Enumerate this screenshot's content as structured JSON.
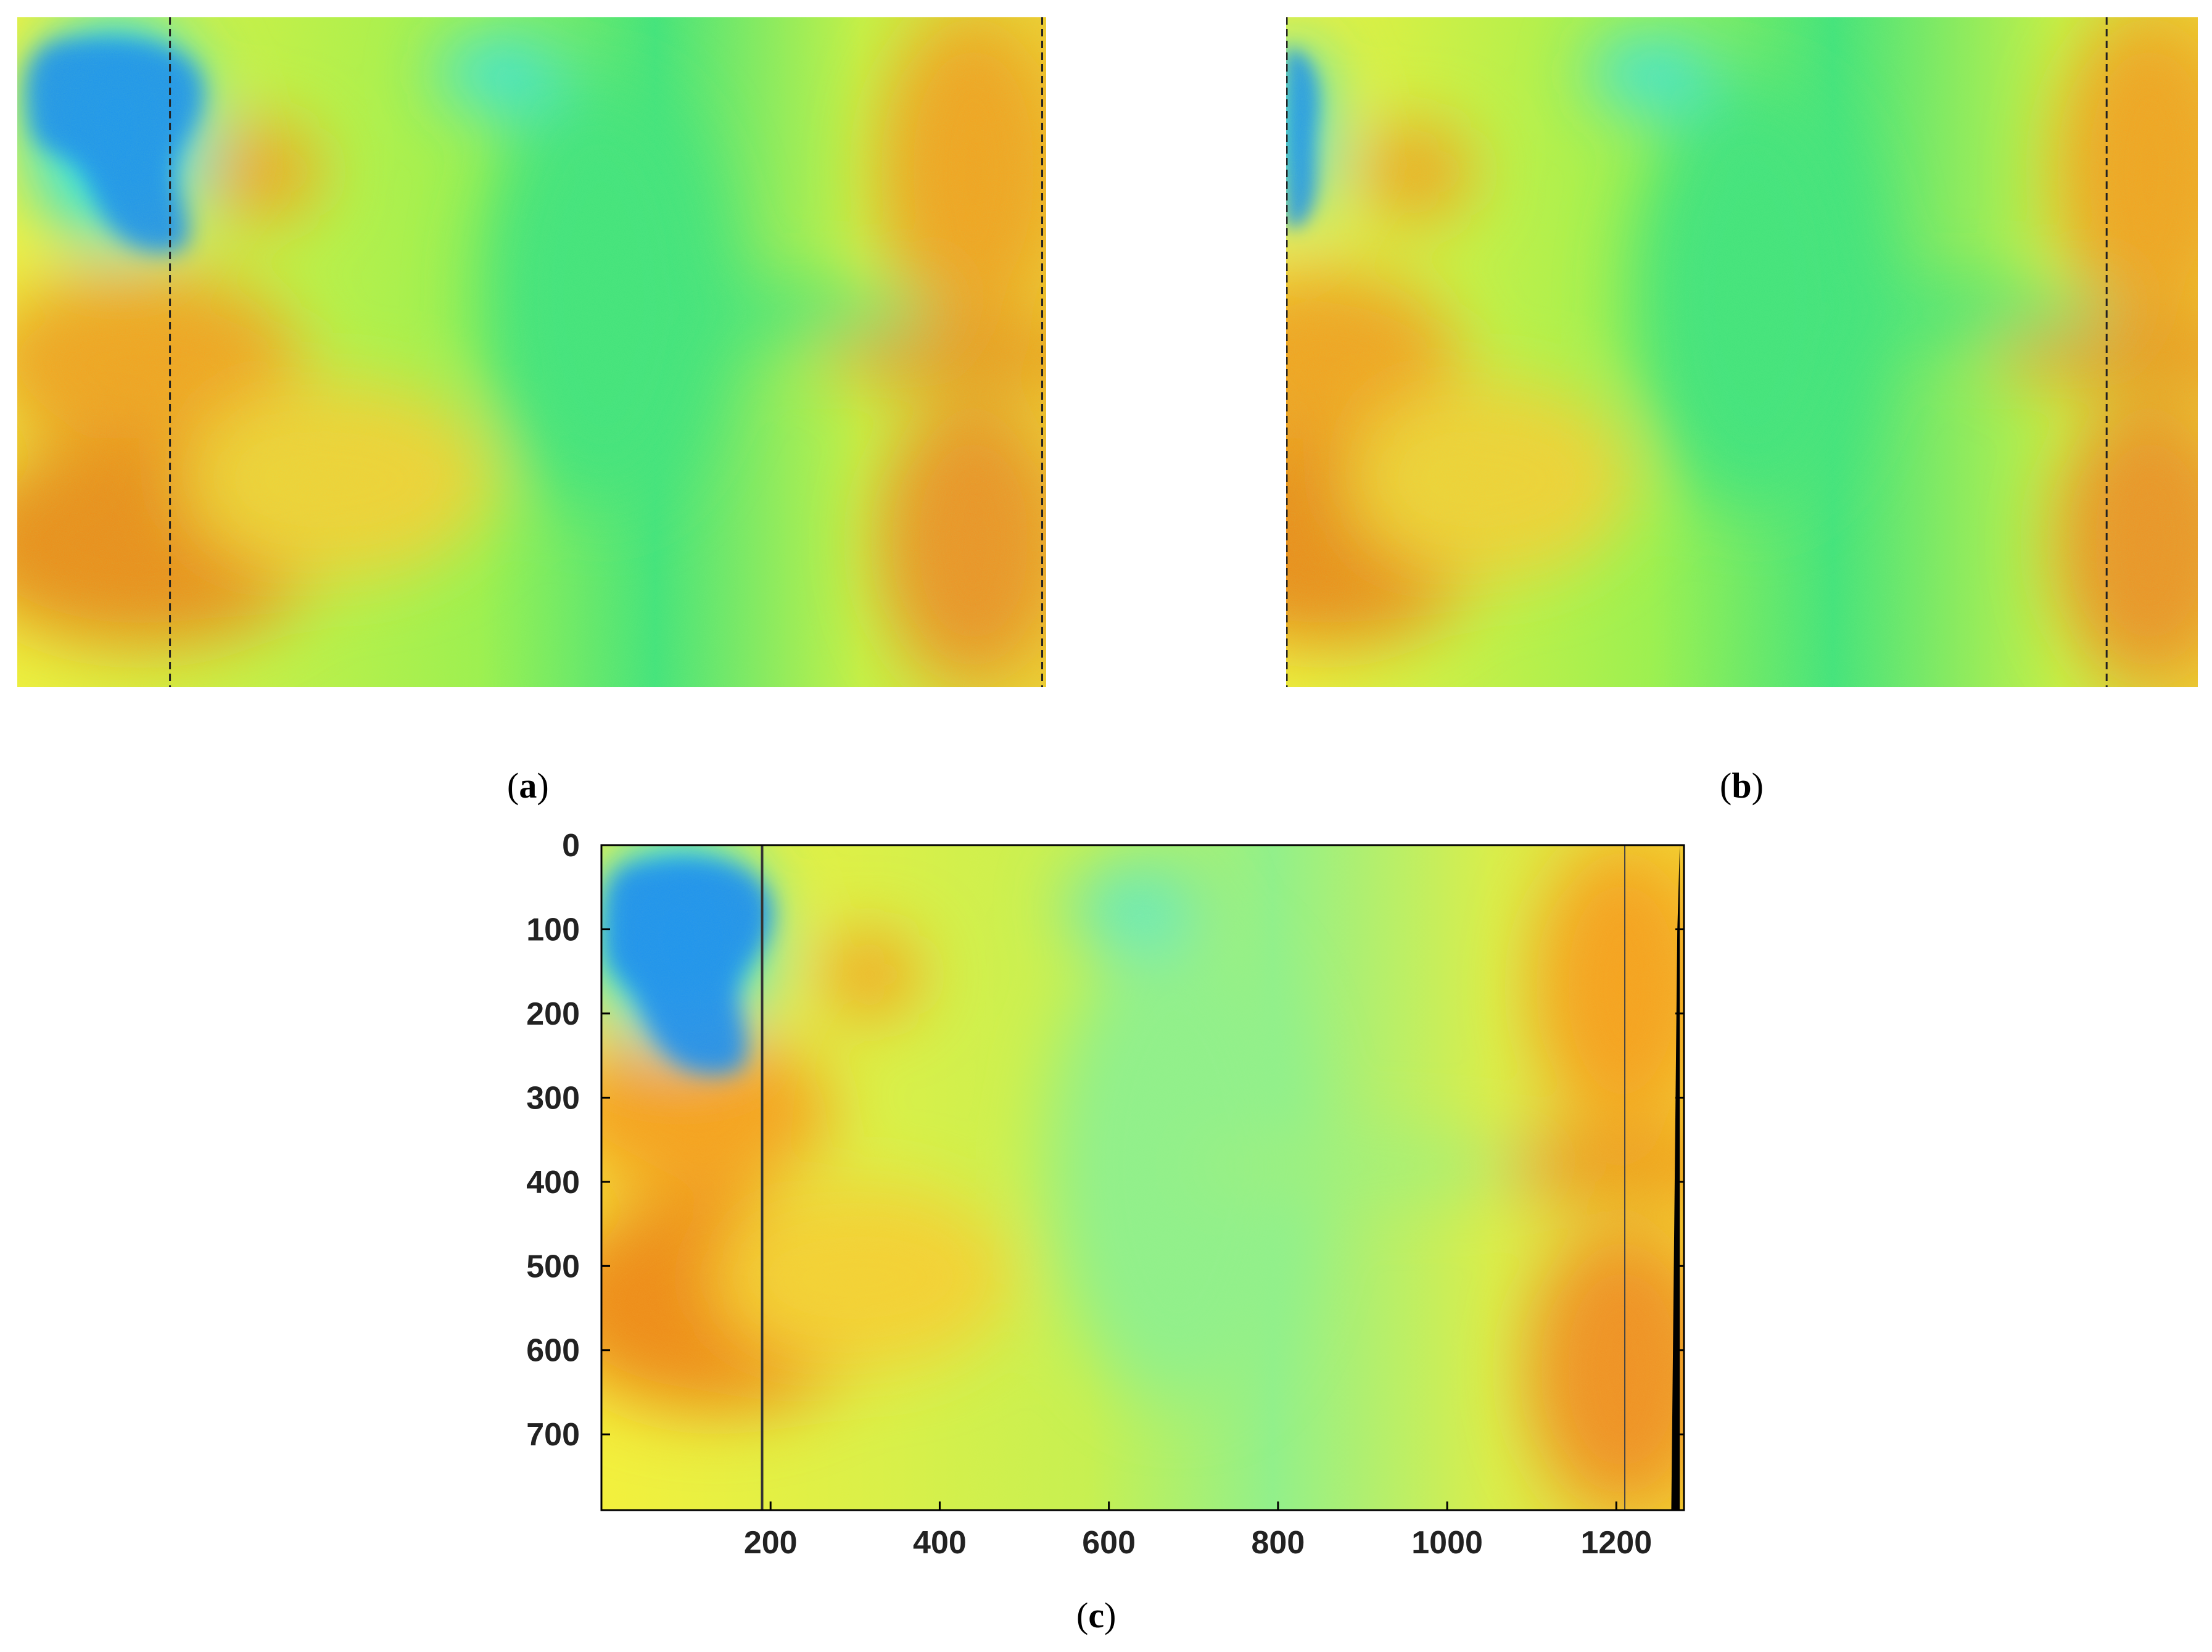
{
  "figure": {
    "captions": {
      "a_open": "(",
      "a_letter": "a",
      "a_close": ")",
      "b_open": "(",
      "b_letter": "b",
      "b_close": ")",
      "c_open": "(",
      "c_letter": "c",
      "c_close": ")"
    }
  },
  "chart_data": [
    {
      "panel": "a",
      "type": "heatmap",
      "description_colormap": "jet-like (blue-cyan-green-yellow-orange)",
      "axes_shown": false,
      "marker_lines": [
        {
          "orientation": "vertical",
          "style": "dashed",
          "x": 190
        },
        {
          "orientation": "vertical",
          "style": "dashed",
          "x": 1275
        }
      ]
    },
    {
      "panel": "b",
      "type": "heatmap",
      "axes_shown": false,
      "marker_lines": [
        {
          "orientation": "vertical",
          "style": "dashed",
          "x": 0
        },
        {
          "orientation": "vertical",
          "style": "dashed",
          "x": 1080
        }
      ]
    },
    {
      "panel": "c",
      "type": "heatmap",
      "axes_shown": true,
      "xlim": [
        0,
        1280
      ],
      "ylim": [
        790,
        0
      ],
      "x_ticks": [
        200,
        400,
        600,
        800,
        1000,
        1200
      ],
      "y_ticks": [
        0,
        100,
        200,
        300,
        400,
        500,
        600,
        700
      ],
      "x_tick_labels": [
        "200",
        "400",
        "600",
        "800",
        "1000",
        "1200"
      ],
      "y_tick_labels": [
        "0",
        "100",
        "200",
        "300",
        "400",
        "500",
        "600",
        "700"
      ],
      "marker_lines": [
        {
          "orientation": "vertical",
          "style": "solid",
          "x": 190
        },
        {
          "orientation": "vertical",
          "style": "solid",
          "x": 1210
        }
      ],
      "black_region_right_edge": {
        "x_from": 1265,
        "x_to": 1275
      }
    }
  ],
  "colors": {
    "blue": "#1a8cf0",
    "cyan": "#33e0e6",
    "green": "#3fe27a",
    "lightgreen": "#9ef04a",
    "yellow": "#f4f038",
    "orange": "#f6a01e",
    "darkorange": "#ef8a14"
  }
}
